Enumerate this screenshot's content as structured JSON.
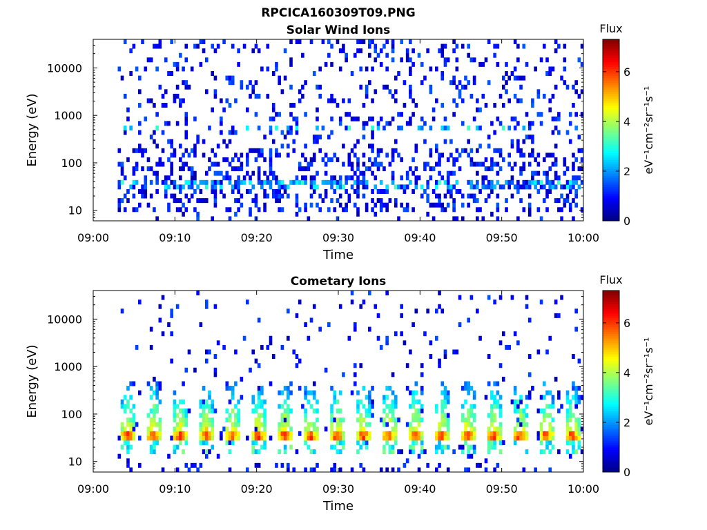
{
  "figure": {
    "title": "RPCICA160309T09.PNG"
  },
  "chart_data": [
    {
      "type": "heatmap",
      "title": "Solar Wind Ions",
      "xlabel": "Time",
      "ylabel": "Energy (eV)",
      "x_ticks": [
        "09:00",
        "09:10",
        "09:20",
        "09:30",
        "09:40",
        "09:50",
        "10:00"
      ],
      "xlim": [
        "09:00",
        "10:00"
      ],
      "y_scale": "log",
      "y_ticks": [
        10,
        100,
        1000,
        10000
      ],
      "ylim": [
        6,
        40000
      ],
      "colorbar": {
        "title": "Flux",
        "label": "eV⁻¹cm⁻²sr⁻¹s⁻¹",
        "ticks": [
          0,
          2,
          4,
          6
        ],
        "range": [
          0,
          7.3
        ],
        "colormap": "jet"
      },
      "data_start": "09:03",
      "data_end": "10:00",
      "pattern": "sparse low-flux scatter across all energies; enhanced band near 30–40 eV and near 500 eV",
      "peak_flux": 4
    },
    {
      "type": "heatmap",
      "title": "Cometary Ions",
      "xlabel": "Time",
      "ylabel": "Energy (eV)",
      "x_ticks": [
        "09:00",
        "09:10",
        "09:20",
        "09:30",
        "09:40",
        "09:50",
        "10:00"
      ],
      "xlim": [
        "09:00",
        "10:00"
      ],
      "y_scale": "log",
      "y_ticks": [
        10,
        100,
        1000,
        10000
      ],
      "ylim": [
        6,
        40000
      ],
      "colorbar": {
        "title": "Flux",
        "label": "eV⁻¹cm⁻²sr⁻¹s⁻¹",
        "ticks": [
          0,
          2,
          4,
          6
        ],
        "range": [
          0,
          7.3
        ],
        "colormap": "jet"
      },
      "data_start": "09:03",
      "data_end": "10:00",
      "pattern": "periodic high-flux bursts centred near 35 eV, repeating roughly every 3.2 minutes, with plumes reaching several hundred eV",
      "peak_flux": 6.5,
      "burst_times_min": [
        4.2,
        7.4,
        10.6,
        13.8,
        17.0,
        20.2,
        23.4,
        26.6,
        29.8,
        33.0,
        36.2,
        39.4,
        42.6,
        45.8,
        49.0,
        52.2,
        55.4,
        58.6
      ],
      "burst_energy_eV": 35
    }
  ]
}
